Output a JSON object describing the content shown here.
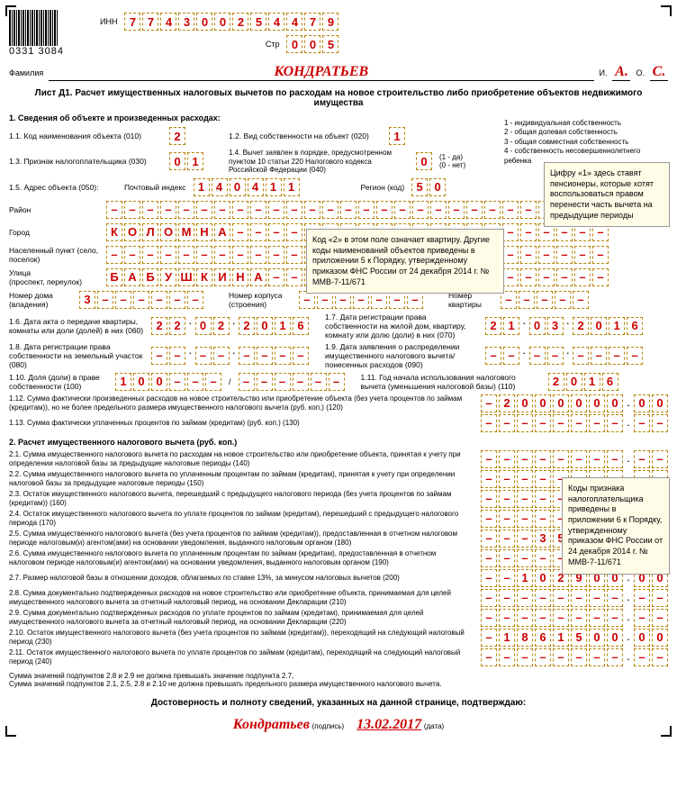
{
  "header": {
    "barcode_number": "0331 3084",
    "inn_label": "ИНН",
    "inn": [
      "7",
      "7",
      "4",
      "3",
      "0",
      "0",
      "2",
      "5",
      "4",
      "4",
      "7",
      "9"
    ],
    "page_label": "Стр",
    "page": [
      "0",
      "0",
      "5"
    ],
    "surname_label": "Фамилия",
    "surname": "КОНДРАТЬЕВ",
    "initials_i_label": "И.",
    "initials_i": "А.",
    "initials_o_label": "О.",
    "initials_o": "С."
  },
  "sheet": {
    "title": "Лист Д1. Расчет имущественных налоговых вычетов по расходам на новое строительство либо приобретение объектов недвижимого имущества"
  },
  "section1": {
    "title": "1. Сведения об объекте и произведенных расходах:",
    "f010_label": "1.1. Код наименования объекта (010)",
    "f010": "2",
    "f020_label": "1.2. Вид собственности на объект (020)",
    "f020": "1",
    "ownership_notes": "1 - индивидуальная собственность\n2 - общая долевая собственность\n3 - общая совместная собственность\n4 - собственность несовершеннолетнего ребенка",
    "f030_label": "1.3. Признак налогоплательщика (030)",
    "f030": [
      "0",
      "1"
    ],
    "f040_label": "1.4. Вычет заявлен в порядке, предусмотренном пунктом 10 статьи 220 Налогового кодекса Российской Федерации (040)",
    "f040": "0",
    "f040_note": "(1 - да)\n(0 - нет)",
    "f050_label": "1.5. Адрес объекта (050):",
    "postal_label": "Почтовый индекс",
    "postal": [
      "1",
      "4",
      "0",
      "4",
      "1",
      "1"
    ],
    "region_label": "Регион (код)",
    "region": [
      "5",
      "0"
    ],
    "district_label": "Район",
    "city_label": "Город",
    "city": [
      "К",
      "О",
      "Л",
      "О",
      "М",
      "Н",
      "А",
      "–",
      "–",
      "–",
      "–",
      "–",
      "–",
      "–",
      "–",
      "–",
      "–",
      "–",
      "–",
      "–",
      "–",
      "–",
      "–",
      "–",
      "–",
      "–",
      "–",
      "–"
    ],
    "settlement_label": "Населенный пункт (село, поселок)",
    "street_label": "Улица\n(проспект, переулок)",
    "street": [
      "Б",
      "А",
      "Б",
      "У",
      "Ш",
      "К",
      "И",
      "Н",
      "А",
      "–",
      "–",
      "–",
      "–",
      "–",
      "–",
      "–",
      "–",
      "–",
      "–",
      "–",
      "–",
      "–",
      "–",
      "–",
      "–",
      "–",
      "–",
      "–"
    ],
    "house_label": "Номер дома\n(владения)",
    "house": [
      "3",
      "–",
      "–",
      "–",
      "–",
      "–",
      "–"
    ],
    "building_label": "Номер корпуса\n(строения)",
    "building": [
      "–",
      "–",
      "–",
      "–",
      "–",
      "–",
      "–"
    ],
    "flat_label": "Номер\nквартиры",
    "flat": [
      "–",
      "–",
      "–",
      "–",
      "–"
    ],
    "f060_label": "1.6. Дата акта о передаче квартиры, комнаты или доли (долей) в них (060)",
    "f060": [
      "2",
      "2",
      ".",
      "0",
      "2",
      ".",
      "2",
      "0",
      "1",
      "6"
    ],
    "f070_label": "1.7. Дата регистрации права собственности на жилой дом, квартиру, комнату или долю (доли) в них (070)",
    "f070": [
      "2",
      "1",
      ".",
      "0",
      "3",
      ".",
      "2",
      "0",
      "1",
      "6"
    ],
    "f080_label": "1.8. Дата регистрации права собственности на земельный участок (080)",
    "f080": [
      "–",
      "–",
      ".",
      "–",
      "–",
      ".",
      "–",
      "–",
      "–",
      "–"
    ],
    "f090_label": "1.9. Дата заявления о распределении имущественного налогового вычета/ понесенных расходов (090)",
    "f090": [
      "–",
      "–",
      ".",
      "–",
      "–",
      ".",
      "–",
      "–",
      "–",
      "–"
    ],
    "f100_label": "1.10. Доля (доли) в праве собственности (100)",
    "f100_num": [
      "1",
      "0",
      "0",
      "–",
      "–",
      "–"
    ],
    "f100_den": [
      "–",
      "–",
      "–",
      "–",
      "–",
      "–"
    ],
    "f110_label": "1.11. Год начала использования налогового вычета (уменьшения налоговой базы) (110)",
    "f110": [
      "2",
      "0",
      "1",
      "6"
    ],
    "f120_label": "1.12. Сумма фактически произведенных расходов на новое строительство или приобретение объекта (без учета процентов по займам (кредитам)), но не более предельного размера имущественного налогового вычета (руб. коп.) (120)",
    "f120_int": [
      "–",
      "2",
      "0",
      "0",
      "0",
      "0",
      "0",
      "0"
    ],
    "f120_dec": [
      "0",
      "0"
    ],
    "f130_label": "1.13. Сумма фактически уплаченных процентов по займам (кредитам) (руб. коп.) (130)",
    "f130_int": [
      "–",
      "–",
      "–",
      "–",
      "–",
      "–",
      "–",
      "–"
    ],
    "f130_dec": [
      "–",
      "–"
    ]
  },
  "section2": {
    "title": "2. Расчет имущественного налогового вычета (руб. коп.)",
    "rows": [
      {
        "label": "2.1. Сумма имущественного налогового вычета по расходам на новое строительство или приобретение объекта, принятая к учету при определении налоговой базы за предыдущие налоговые периоды (140)",
        "int": [
          "–",
          "–",
          "–",
          "–",
          "–",
          "–",
          "–",
          "–"
        ],
        "dec": [
          "–",
          "–"
        ]
      },
      {
        "label": "2.2. Сумма имущественного налогового вычета по уплаченным процентам по займам (кредитам), принятая к учету при определении налоговой базы за предыдущие налоговые периоды (150)",
        "int": [
          "–",
          "–",
          "–",
          "–",
          "–",
          "–",
          "–",
          "–"
        ],
        "dec": [
          "–",
          "–"
        ]
      },
      {
        "label": "2.3. Остаток имущественного налогового вычета, перешедший с предыдущего налогового периода (без учета процентов по займам (кредитам)) (160)",
        "int": [
          "–",
          "–",
          "–",
          "–",
          "–",
          "–",
          "–",
          "–"
        ],
        "dec": [
          "–",
          "–"
        ]
      },
      {
        "label": "2.4. Остаток имущественного налогового вычета по уплате процентов по займам (кредитам), перешедший с предыдущего налогового периода (170)",
        "int": [
          "–",
          "–",
          "–",
          "–",
          "–",
          "–",
          "–",
          "–"
        ],
        "dec": [
          "–",
          "–"
        ]
      },
      {
        "label": "2.5. Сумма имущественного налогового вычета (без учета процентов по займам (кредитам)), предоставленная в отчетном налоговом периоде налоговым(и) агентом(ами) на основании уведомления, выданного налоговым органом (180)",
        "int": [
          "–",
          "–",
          "–",
          "3",
          "5",
          "6",
          "0",
          "0"
        ],
        "dec": [
          "0",
          "0"
        ]
      },
      {
        "label": "2.6. Сумма имущественного налогового вычета по уплаченным процентам по займам (кредитам), предоставленная в отчетном налоговом периоде налоговым(и) агентом(ами) на основании уведомления, выданного налоговым органом (190)",
        "int": [
          "–",
          "–",
          "–",
          "–",
          "–",
          "–",
          "–",
          "–"
        ],
        "dec": [
          "–",
          "–"
        ]
      },
      {
        "label": "2.7. Размер налоговой базы в отношении доходов, облагаемых по ставке 13%, за минусом налоговых вычетов (200)",
        "int": [
          "–",
          "–",
          "1",
          "0",
          "2",
          "9",
          "0",
          "0"
        ],
        "dec": [
          "0",
          "0"
        ]
      },
      {
        "label": "2.8. Сумма документально подтвержденных расходов на новое строительство или приобретение объекта, принимаемая для целей имущественного налогового вычета за отчетный налоговый период, на основании Декларации (210)",
        "int": [
          "–",
          "–",
          "–",
          "–",
          "–",
          "–",
          "–",
          "–"
        ],
        "dec": [
          "–",
          "–"
        ]
      },
      {
        "label": "2.9. Сумма документально подтвержденных расходов по уплате процентов по займам (кредитам), принимаемая для целей имущественного налогового вычета за отчетный налоговый период, на основании Декларации (220)",
        "int": [
          "–",
          "–",
          "–",
          "–",
          "–",
          "–",
          "–",
          "–"
        ],
        "dec": [
          "–",
          "–"
        ]
      },
      {
        "label": "2.10. Остаток имущественного налогового вычета (без учета процентов по займам (кредитам)), переходящий на следующий налоговый период (230)",
        "int": [
          "–",
          "1",
          "8",
          "6",
          "1",
          "5",
          "0",
          "0"
        ],
        "dec": [
          "0",
          "0"
        ]
      },
      {
        "label": "2.11. Остаток имущественного налогового вычета по уплате процентов по займам (кредитам), переходящий на следующий налоговый период (240)",
        "int": [
          "–",
          "–",
          "–",
          "–",
          "–",
          "–",
          "–",
          "–"
        ],
        "dec": [
          "–",
          "–"
        ]
      }
    ],
    "footnote1": "Сумма значений подпунктов 2.8 и 2.9 не должна превышать значение подпункта 2.7,",
    "footnote2": "Сумма значений подпунктов 2.1, 2.5, 2.8 и 2.10 не должна превышать предельного размера имущественного налогового вычета."
  },
  "callouts": {
    "c1": "Цифру «1» здесь ставят пенсионеры, которые хотят воспользоваться правом перенести часть вычета на предыдущие периоды",
    "c2": "Код «2» в этом поле означает квартиру. Другие коды наименований объектов приведены в приложении 5 к Порядку, утвержденному приказом ФНС России от 24 декабря 2014 г. № ММВ-7-11/671",
    "c3": "Коды признака налогоплательщика приведены в приложении 6 к Порядку, утвержденному приказом ФНС России от 24 декабря 2014 г. № ММВ-7-11/671"
  },
  "signature": {
    "confirm": "Достоверность и полноту сведений, указанных на данной странице, подтверждаю:",
    "name": "Кондратьев",
    "sig_label": "(подпись)",
    "date": "13.02.2017",
    "date_label": "(дата)"
  },
  "colors": {
    "cell_border": "#b8860b",
    "red": "#c00000",
    "callout_bg": "#fffde7"
  }
}
